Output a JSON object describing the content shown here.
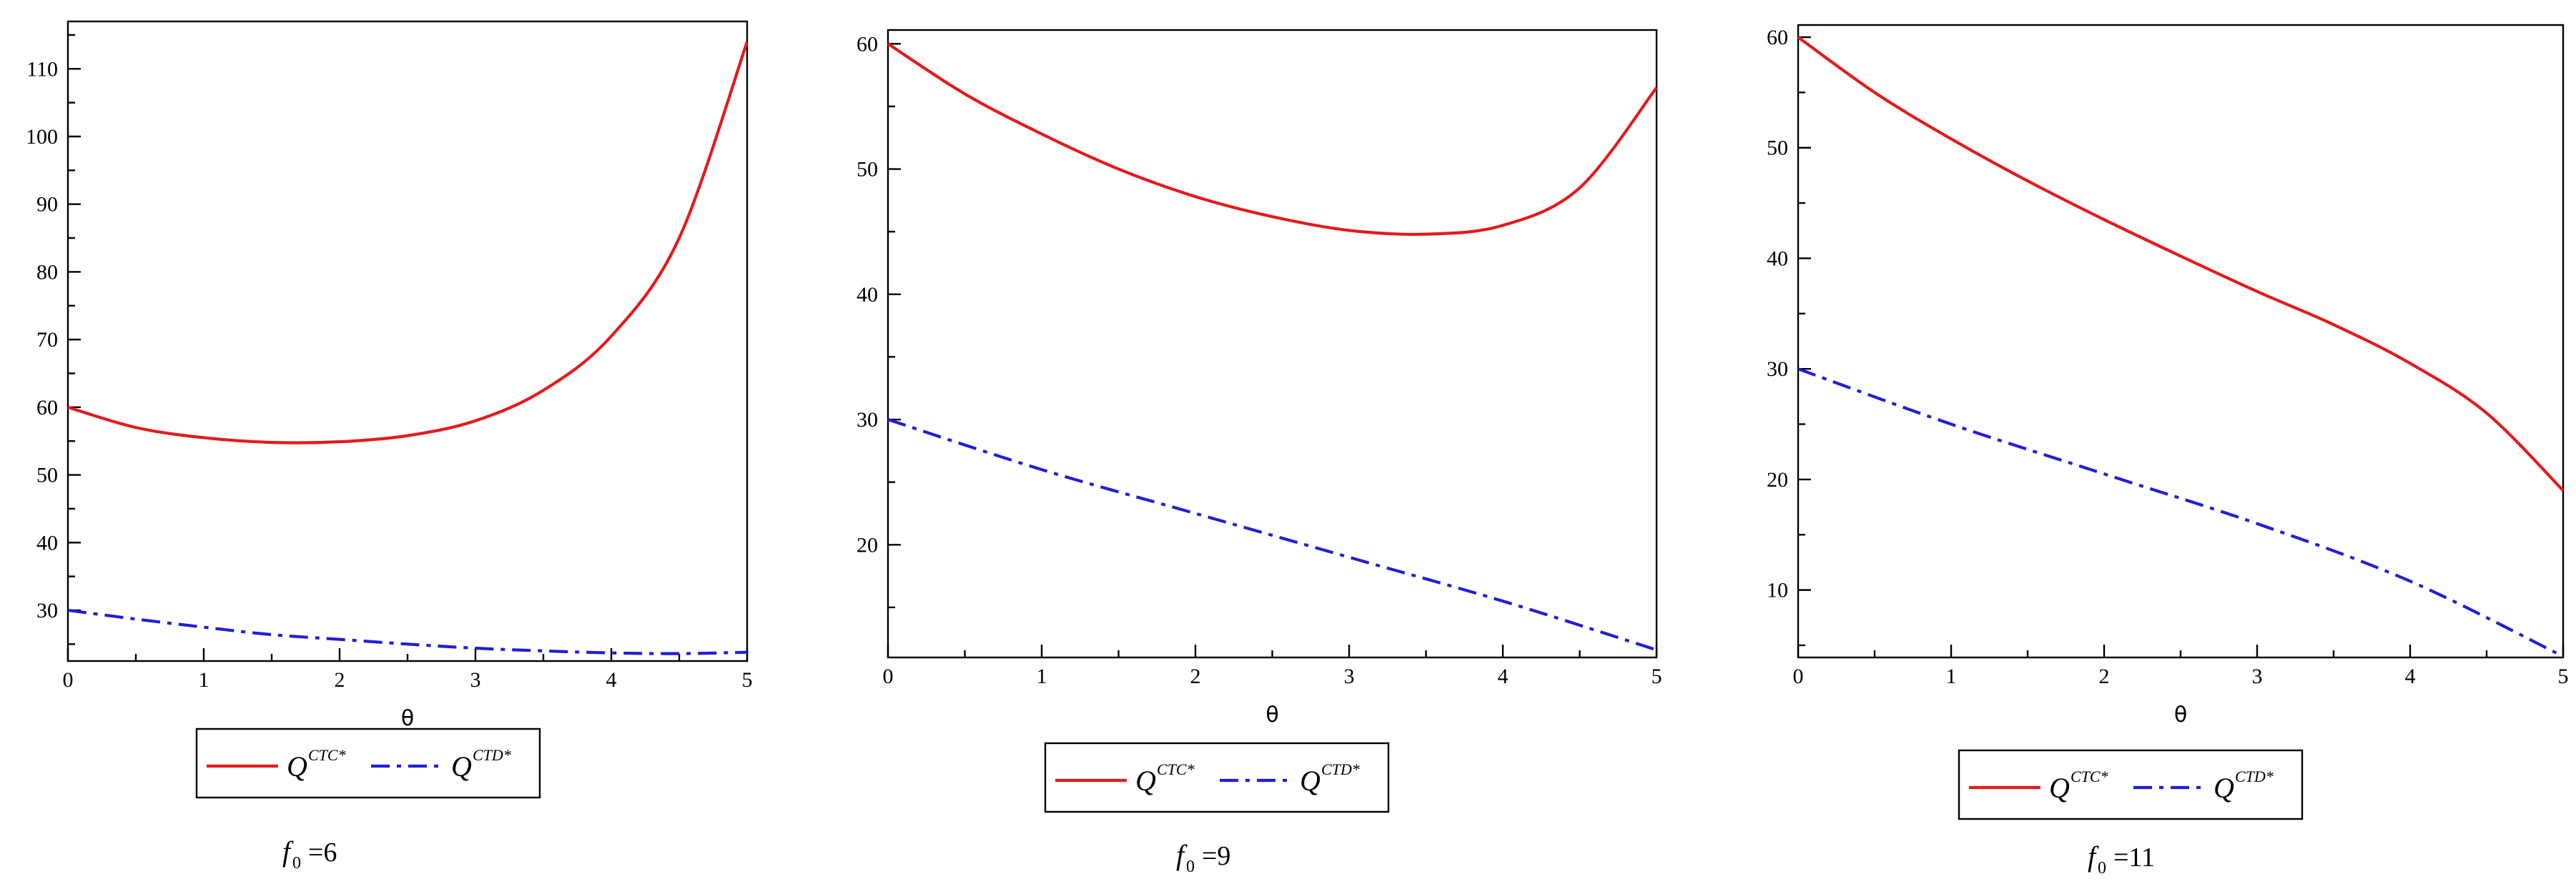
{
  "chart_data": [
    {
      "type": "line",
      "xlabel": "θ",
      "x_ticks": [
        0,
        1,
        2,
        3,
        4,
        5
      ],
      "y_ticks": [
        30,
        40,
        50,
        60,
        70,
        80,
        90,
        100,
        110
      ],
      "xlim": [
        0,
        5
      ],
      "ylim": [
        22.5,
        117
      ],
      "grid": false,
      "legend_position": "below",
      "caption": {
        "var": "f",
        "sub": "0",
        "eq": "=6"
      },
      "series": [
        {
          "name_base": "Q",
          "name_sup": "CTC*",
          "color": "#e41a1c",
          "style": "solid",
          "x": [
            0,
            0.5,
            1,
            1.5,
            2,
            2.5,
            3,
            3.5,
            4,
            4.5,
            5
          ],
          "values": [
            60,
            57,
            55.5,
            54.8,
            54.9,
            55.8,
            58,
            62.5,
            70.5,
            85,
            114
          ]
        },
        {
          "name_base": "Q",
          "name_sup": "CTD*",
          "color": "#1f1fd6",
          "style": "dashdot",
          "x": [
            0,
            0.5,
            1,
            1.5,
            2,
            2.5,
            3,
            3.5,
            4,
            4.5,
            5
          ],
          "values": [
            30,
            28.7,
            27.5,
            26.4,
            25.7,
            25,
            24.4,
            24,
            23.7,
            23.6,
            23.8
          ]
        }
      ]
    },
    {
      "type": "line",
      "xlabel": "θ",
      "x_ticks": [
        0,
        1,
        2,
        3,
        4,
        5
      ],
      "y_ticks": [
        20,
        30,
        40,
        50,
        60
      ],
      "xlim": [
        0,
        5
      ],
      "ylim": [
        11,
        61.1
      ],
      "grid": false,
      "legend_position": "below",
      "caption": {
        "var": "f",
        "sub": "0",
        "eq": "=9"
      },
      "series": [
        {
          "name_base": "Q",
          "name_sup": "CTC*",
          "color": "#e41a1c",
          "style": "solid",
          "x": [
            0,
            0.5,
            1,
            1.5,
            2,
            2.5,
            3,
            3.5,
            4,
            4.5,
            5
          ],
          "values": [
            60,
            56,
            52.8,
            50,
            47.8,
            46.2,
            45.1,
            44.8,
            45.5,
            48.5,
            56.5
          ]
        },
        {
          "name_base": "Q",
          "name_sup": "CTD*",
          "color": "#1f1fd6",
          "style": "dashdot",
          "x": [
            0,
            1,
            2,
            3,
            4,
            5
          ],
          "values": [
            30,
            26,
            22.5,
            19,
            15.5,
            11.6
          ]
        }
      ]
    },
    {
      "type": "line",
      "xlabel": "θ",
      "x_ticks": [
        0,
        1,
        2,
        3,
        4,
        5
      ],
      "y_ticks": [
        10,
        20,
        30,
        40,
        50,
        60
      ],
      "xlim": [
        0,
        5
      ],
      "ylim": [
        3.9,
        61.1
      ],
      "grid": false,
      "legend_position": "below",
      "caption": {
        "var": "f",
        "sub": "0",
        "eq": "=11"
      },
      "series": [
        {
          "name_base": "Q",
          "name_sup": "CTC*",
          "color": "#e41a1c",
          "style": "solid",
          "x": [
            0,
            0.5,
            1,
            1.5,
            2,
            2.5,
            3,
            3.5,
            4,
            4.5,
            5
          ],
          "values": [
            60,
            55,
            50.8,
            47,
            43.5,
            40.2,
            37,
            34,
            30.5,
            26,
            19
          ]
        },
        {
          "name_base": "Q",
          "name_sup": "CTD*",
          "color": "#1f1fd6",
          "style": "dashdot",
          "x": [
            0,
            1,
            2,
            3,
            4,
            5
          ],
          "values": [
            30,
            25,
            20.5,
            16,
            10.8,
            4
          ]
        }
      ]
    }
  ]
}
